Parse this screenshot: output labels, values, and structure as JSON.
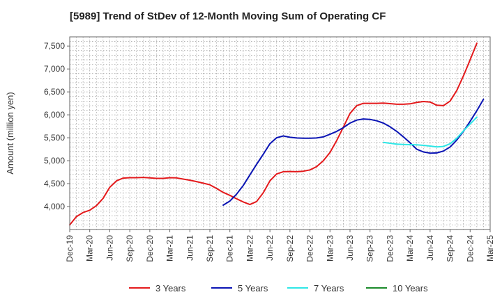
{
  "chart_data": {
    "type": "line",
    "title": "[5989]  Trend of StDev of 12-Month Moving Sum of Operating CF",
    "ylabel": "Amount (million yen)",
    "xlabel": "",
    "ylim": [
      3500,
      7700
    ],
    "yticks": [
      4000,
      4500,
      5000,
      5500,
      6000,
      6500,
      7000,
      7500
    ],
    "ytick_labels": [
      "4,000",
      "4,500",
      "5,000",
      "5,500",
      "6,000",
      "6,500",
      "7,000",
      "7,500"
    ],
    "x_start": "2019-12",
    "x_end": "2025-03",
    "xtick_labels": [
      "Dec-19",
      "Mar-20",
      "Jun-20",
      "Sep-20",
      "Dec-20",
      "Mar-21",
      "Jun-21",
      "Sep-21",
      "Dec-21",
      "Mar-22",
      "Jun-22",
      "Sep-22",
      "Dec-22",
      "Mar-23",
      "Jun-23",
      "Sep-23",
      "Dec-23",
      "Mar-24",
      "Jun-24",
      "Sep-24",
      "Dec-24",
      "Mar-25"
    ],
    "grid": true,
    "legend_position": "bottom",
    "series": [
      {
        "name": "3 Years",
        "color": "#e41a1c",
        "start": "2019-12",
        "values": [
          3600,
          3780,
          3870,
          3920,
          4020,
          4180,
          4420,
          4560,
          4620,
          4630,
          4630,
          4635,
          4625,
          4615,
          4615,
          4630,
          4625,
          4600,
          4575,
          4545,
          4510,
          4475,
          4395,
          4310,
          4245,
          4170,
          4100,
          4045,
          4110,
          4300,
          4560,
          4710,
          4760,
          4765,
          4760,
          4770,
          4800,
          4870,
          5000,
          5180,
          5440,
          5730,
          6030,
          6200,
          6250,
          6250,
          6250,
          6255,
          6245,
          6230,
          6230,
          6240,
          6270,
          6290,
          6280,
          6210,
          6200,
          6300,
          6530,
          6850,
          7200,
          7560
        ]
      },
      {
        "name": "5 Years",
        "color": "#0a14b4",
        "start": "2021-11",
        "values": [
          4030,
          4120,
          4270,
          4460,
          4690,
          4920,
          5140,
          5370,
          5500,
          5540,
          5510,
          5495,
          5490,
          5490,
          5495,
          5520,
          5575,
          5640,
          5720,
          5820,
          5885,
          5910,
          5900,
          5870,
          5820,
          5740,
          5640,
          5520,
          5390,
          5250,
          5190,
          5165,
          5170,
          5210,
          5300,
          5450,
          5640,
          5860,
          6090,
          6340
        ]
      },
      {
        "name": "7 Years",
        "color": "#2ee6e6",
        "start": "2023-11",
        "values": [
          5400,
          5380,
          5360,
          5355,
          5350,
          5345,
          5335,
          5320,
          5300,
          5310,
          5370,
          5490,
          5650,
          5800,
          5950
        ]
      },
      {
        "name": "10 Years",
        "color": "#1b8a2a",
        "start": "2024-12",
        "values": []
      }
    ]
  }
}
